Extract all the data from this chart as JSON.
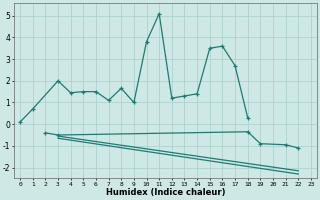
{
  "xlabel": "Humidex (Indice chaleur)",
  "line1_x": [
    0,
    1,
    3,
    4,
    5,
    6,
    7,
    8,
    9,
    10,
    11,
    12,
    13,
    14,
    15,
    16,
    17,
    18
  ],
  "line1_y": [
    0.1,
    0.7,
    2.0,
    1.45,
    1.5,
    1.5,
    1.1,
    1.65,
    1.0,
    3.8,
    5.1,
    1.2,
    1.3,
    1.4,
    3.5,
    3.6,
    2.7,
    0.3
  ],
  "line1_markers": [
    0,
    1,
    3,
    4,
    5,
    6,
    7,
    8,
    9,
    10,
    11,
    12,
    13,
    14,
    15,
    16,
    17,
    18
  ],
  "line2_x": [
    2,
    3,
    18,
    19,
    21,
    22
  ],
  "line2_y": [
    -0.4,
    -0.5,
    -0.35,
    -0.9,
    -0.95,
    -1.1
  ],
  "line2_markers": [
    2,
    3,
    18,
    19,
    21,
    22
  ],
  "line3_x": [
    3,
    22
  ],
  "line3_y": [
    -0.55,
    -2.15
  ],
  "line4_x": [
    3,
    22
  ],
  "line4_y": [
    -0.65,
    -2.3
  ],
  "bg_color": "#cde8e5",
  "grid_color": "#aacfcc",
  "line_color": "#1e7b72",
  "ylim": [
    -2.5,
    5.6
  ],
  "xlim": [
    -0.5,
    23.5
  ],
  "yticks": [
    -2,
    -1,
    0,
    1,
    2,
    3,
    4,
    5
  ],
  "xticks": [
    0,
    1,
    2,
    3,
    4,
    5,
    6,
    7,
    8,
    9,
    10,
    11,
    12,
    13,
    14,
    15,
    16,
    17,
    18,
    19,
    20,
    21,
    22,
    23
  ],
  "xlabel_fontsize": 6.0,
  "tick_fontsize": 4.5,
  "ytick_fontsize": 5.5,
  "linewidth": 0.9,
  "marker_size": 2.5
}
